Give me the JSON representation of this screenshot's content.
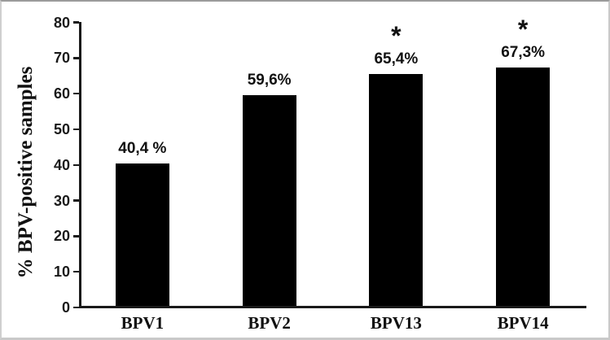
{
  "figure": {
    "background": "#ffffff",
    "frame_color": "#c9c9c9",
    "top_frame_color": "#9b9b9b"
  },
  "chart_data": {
    "type": "bar",
    "title": "",
    "categories": [
      "BPV1",
      "BPV2",
      "BPV13",
      "BPV14"
    ],
    "values": [
      40.4,
      59.6,
      65.4,
      67.3
    ],
    "value_labels": [
      "40,4 %",
      "59,6%",
      "65,4%",
      "67,3%"
    ],
    "significance_markers": [
      "",
      "",
      "*",
      "*"
    ],
    "ylabel": "% BPV-positive samples",
    "xlabel": "",
    "ylim": [
      0,
      80
    ],
    "yticks": [
      0,
      10,
      20,
      30,
      40,
      50,
      60,
      70,
      80
    ],
    "grid": false,
    "legend": null,
    "bar_color": "#000000",
    "axis_color": "#1a1a1a",
    "text_color": "#111111"
  }
}
